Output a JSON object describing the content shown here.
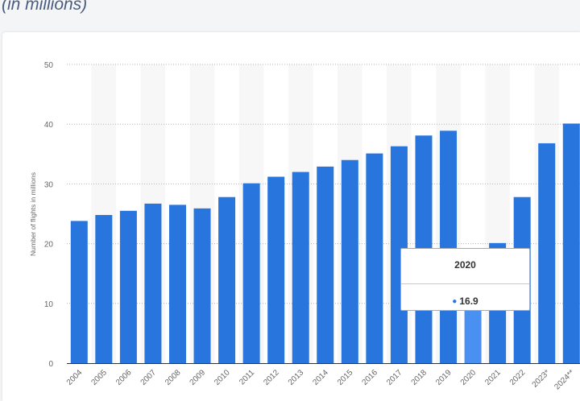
{
  "header": {
    "subtitle": "(in millions)"
  },
  "tooltip": {
    "category": "2020",
    "value": "16.9"
  },
  "colors": {
    "bar": "#2876dd",
    "bar_highlight": "#4a90f0",
    "band": "#f7f7f7",
    "grid": "#b5b5b5",
    "text": "#666666"
  },
  "chart_data": {
    "type": "bar",
    "title": "",
    "xlabel": "",
    "ylabel": "Number of flights in millions",
    "categories": [
      "2004",
      "2005",
      "2006",
      "2007",
      "2008",
      "2009",
      "2010",
      "2011",
      "2012",
      "2013",
      "2014",
      "2015",
      "2016",
      "2017",
      "2018",
      "2019",
      "2020",
      "2021",
      "2022",
      "2023*",
      "2024**"
    ],
    "values": [
      23.8,
      24.8,
      25.5,
      26.7,
      26.5,
      25.9,
      27.8,
      30.1,
      31.2,
      32.0,
      32.9,
      34.0,
      35.1,
      36.3,
      38.1,
      38.9,
      16.9,
      20.1,
      27.8,
      36.8,
      40.1
    ],
    "highlighted": "2020",
    "ylim": [
      0,
      50
    ],
    "yticks": [
      0,
      10,
      20,
      30,
      40,
      50
    ],
    "grid": true,
    "legend": "none"
  }
}
